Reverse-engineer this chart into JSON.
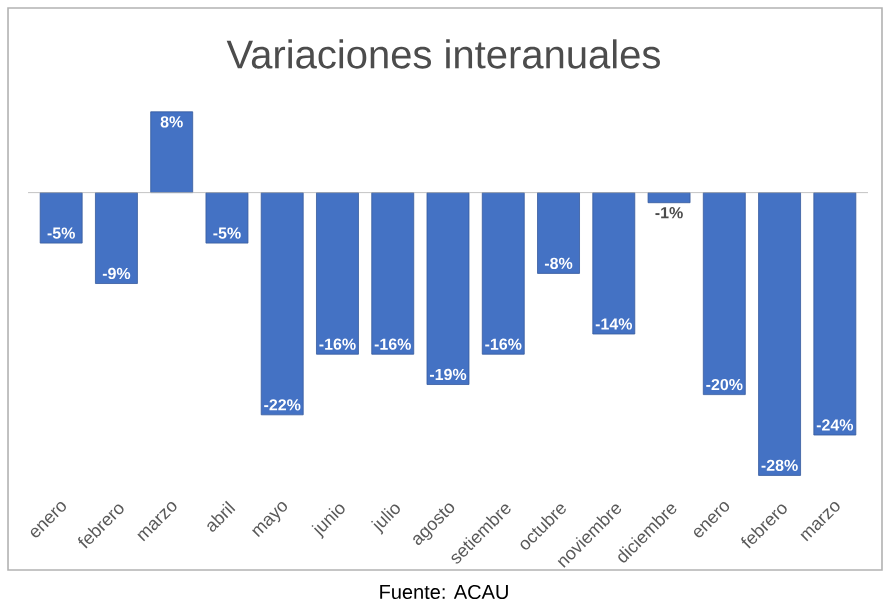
{
  "chart_data": {
    "type": "bar",
    "title": "Variaciones interanuales",
    "categories": [
      "enero",
      "febrero",
      "marzo",
      "abril",
      "mayo",
      "junio",
      "julio",
      "agosto",
      "setiembre",
      "octubre",
      "noviembre",
      "diciembre",
      "enero",
      "febrero",
      "marzo"
    ],
    "values": [
      -5,
      -9,
      8,
      -5,
      -22,
      -16,
      -16,
      -19,
      -16,
      -8,
      -14,
      -1,
      -20,
      -28,
      -24
    ],
    "value_labels": [
      "-5%",
      "-9%",
      "8%",
      "-5%",
      "-22%",
      "-16%",
      "-16%",
      "-19%",
      "-16%",
      "-8%",
      "-14%",
      "-1%",
      "-20%",
      "-28%",
      "-24%"
    ],
    "color": "#4472c4",
    "annotations": [
      "Fuente: ACAU"
    ]
  }
}
